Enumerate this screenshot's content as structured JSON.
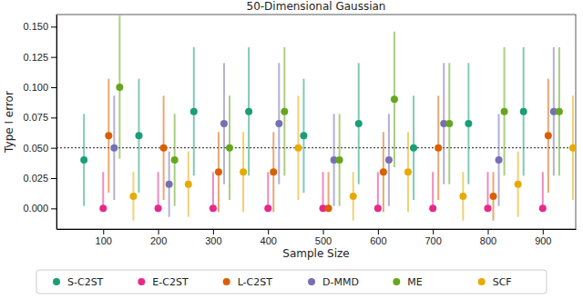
{
  "chart_data": {
    "type": "scatter",
    "title": "50-Dimensional Gaussian",
    "x_label": "Sample Size",
    "y_label": "Type I error",
    "x": [
      100,
      200,
      300,
      400,
      500,
      600,
      700,
      800,
      900
    ],
    "xlim": [
      15,
      960
    ],
    "xticks": [
      100,
      200,
      300,
      400,
      500,
      600,
      700,
      800,
      900
    ],
    "ylim": [
      -0.017,
      0.16
    ],
    "yticks": [
      {
        "value": 0,
        "label": "0.000"
      },
      {
        "value": 0.025,
        "label": "0.025"
      },
      {
        "value": 0.05,
        "label": "0.050"
      },
      {
        "value": 0.075,
        "label": "0.075"
      },
      {
        "value": 0.1,
        "label": "0.100"
      },
      {
        "value": 0.125,
        "label": "0.125"
      },
      {
        "value": 0.15,
        "label": "0.150"
      }
    ],
    "grid": false,
    "legend": "bottom",
    "reference_line": {
      "value": 0.05,
      "line_style": "dotted"
    },
    "series": [
      {
        "name": "S-C2ST",
        "color": "#1b9e77",
        "marker": "circle",
        "values": [
          0.04,
          0.06,
          0.08,
          0.08,
          0.06,
          0.07,
          0.05,
          0.07,
          0.08
        ],
        "error_low": [
          0.038,
          0.047,
          0.053,
          0.053,
          0.047,
          0.05,
          0.043,
          0.05,
          0.053
        ],
        "error_high": [
          0.038,
          0.047,
          0.053,
          0.053,
          0.047,
          0.05,
          0.043,
          0.05,
          0.053
        ]
      },
      {
        "name": "E-C2ST",
        "color": "#e7298a",
        "marker": "circle",
        "values": [
          0,
          0,
          0,
          0,
          0,
          0,
          0,
          0,
          0
        ],
        "error_low": [
          0,
          0,
          0,
          0,
          0,
          0,
          0,
          0,
          0
        ],
        "error_high": [
          0.03,
          0.03,
          0.03,
          0.03,
          0.03,
          0.03,
          0.03,
          0.03,
          0.03
        ]
      },
      {
        "name": "L-C2ST",
        "color": "#d95f02",
        "marker": "circle",
        "values": [
          0.06,
          0.05,
          0.03,
          0.03,
          0,
          0.03,
          0.05,
          0.01,
          0.06
        ],
        "error_low": [
          0.047,
          0.043,
          0.033,
          0.033,
          0,
          0.033,
          0.043,
          0.02,
          0.047
        ],
        "error_high": [
          0.047,
          0.043,
          0.033,
          0.033,
          0.03,
          0.033,
          0.043,
          0.02,
          0.047
        ]
      },
      {
        "name": "D-MMD",
        "color": "#7570b3",
        "marker": "circle",
        "values": [
          0.05,
          0.02,
          0.07,
          0.07,
          0.04,
          0.04,
          0.07,
          0.04,
          0.08
        ],
        "error_low": [
          0.043,
          0.027,
          0.05,
          0.05,
          0.038,
          0.038,
          0.05,
          0.038,
          0.053
        ],
        "error_high": [
          0.043,
          0.027,
          0.05,
          0.05,
          0.038,
          0.038,
          0.05,
          0.038,
          0.053
        ]
      },
      {
        "name": "ME",
        "color": "#66a61e",
        "marker": "circle",
        "values": [
          0.1,
          0.04,
          0.05,
          0.08,
          0.04,
          0.09,
          0.07,
          0.08,
          0.08
        ],
        "error_low": [
          0.059,
          0.038,
          0.043,
          0.053,
          0.038,
          0.056,
          0.05,
          0.053,
          0.053
        ],
        "error_high": [
          0.059,
          0.038,
          0.043,
          0.053,
          0.038,
          0.056,
          0.05,
          0.053,
          0.053
        ]
      },
      {
        "name": "SCF",
        "color": "#e6ab02",
        "marker": "circle",
        "values": [
          0.01,
          0.02,
          0.03,
          0.05,
          0.01,
          0.03,
          0.01,
          0.02,
          0.05
        ],
        "error_low": [
          0.02,
          0.027,
          0.033,
          0.043,
          0.02,
          0.033,
          0.02,
          0.027,
          0.043
        ],
        "error_high": [
          0.02,
          0.027,
          0.033,
          0.043,
          0.02,
          0.033,
          0.02,
          0.027,
          0.043
        ]
      }
    ]
  }
}
